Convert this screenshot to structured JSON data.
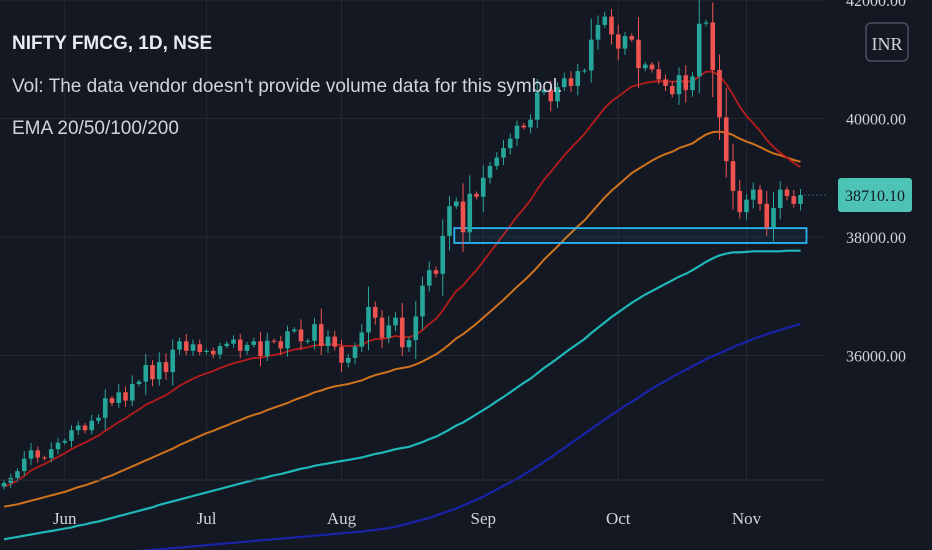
{
  "header": {
    "title": "NIFTY FMCG, 1D, NSE",
    "volume_note": "Vol: The data vendor doesn't provide volume data for this symbol.",
    "indicator": "EMA 20/50/100/200"
  },
  "currency_button": "INR",
  "colors": {
    "background": "#141823",
    "up": "#26a69a",
    "down": "#ef5350",
    "ema20": "#b71c1c",
    "ema50": "#d1731d",
    "ema100": "#1fb7b7",
    "ema200": "#1a23a8",
    "zone": "#29b6f6",
    "price_label": "#4cc3b4"
  },
  "chart_data": {
    "type": "line",
    "subtype": "candlestick",
    "y_axis": {
      "side": "right",
      "ticks": [
        "42000.00",
        "40000.00",
        "38000.00",
        "36000.00"
      ],
      "ylim": [
        33900,
        42000
      ]
    },
    "x_axis": {
      "ticks": [
        "Jun",
        "Jul",
        "Aug",
        "Sep",
        "Oct",
        "Nov"
      ],
      "tick_index": [
        9,
        30,
        50,
        71,
        91,
        110
      ]
    },
    "last_price": "38710.10",
    "close": [
      33850,
      33935,
      34050,
      34260,
      34400,
      34280,
      34270,
      34420,
      34530,
      34560,
      34740,
      34820,
      34740,
      34900,
      34950,
      35280,
      35200,
      35380,
      35240,
      35520,
      35560,
      35840,
      35600,
      35890,
      35720,
      36100,
      36240,
      36080,
      36190,
      36060,
      36080,
      36020,
      36160,
      36200,
      36270,
      36080,
      36180,
      36240,
      35990,
      36250,
      36240,
      36120,
      36410,
      36440,
      36240,
      36250,
      36530,
      36160,
      36320,
      36150,
      35880,
      35960,
      36150,
      36390,
      36820,
      36640,
      36300,
      36510,
      36640,
      36140,
      36260,
      36660,
      37180,
      37440,
      37380,
      38020,
      38520,
      38600,
      38080,
      38730,
      38680,
      39000,
      39200,
      39340,
      39500,
      39660,
      39880,
      39850,
      39980,
      40440,
      40490,
      40290,
      40530,
      40680,
      40550,
      40800,
      40810,
      41330,
      41580,
      41720,
      41420,
      41180,
      41390,
      41330,
      40850,
      40910,
      40830,
      40660,
      40550,
      40410,
      40730,
      40480,
      40710,
      41600,
      41620,
      40820,
      40020,
      39280,
      38780,
      38420,
      38630,
      38800,
      38560,
      38160,
      38490,
      38800,
      38690,
      38560,
      38710
    ],
    "ema20": [
      33790,
      33830,
      33890,
      33970,
      34060,
      34120,
      34170,
      34230,
      34290,
      34350,
      34420,
      34480,
      34530,
      34590,
      34650,
      34730,
      34800,
      34880,
      34940,
      35020,
      35090,
      35170,
      35220,
      35280,
      35330,
      35410,
      35490,
      35550,
      35610,
      35660,
      35700,
      35740,
      35790,
      35830,
      35870,
      35900,
      35930,
      35960,
      35960,
      35990,
      36010,
      36030,
      36070,
      36100,
      36120,
      36140,
      36170,
      36180,
      36190,
      36190,
      36170,
      36160,
      36160,
      36180,
      36240,
      36280,
      36280,
      36300,
      36330,
      36310,
      36310,
      36350,
      36430,
      36530,
      36620,
      36760,
      36930,
      37090,
      37180,
      37320,
      37440,
      37590,
      37740,
      37890,
      38040,
      38190,
      38350,
      38480,
      38620,
      38800,
      38970,
      39100,
      39240,
      39380,
      39500,
      39620,
      39740,
      39890,
      40030,
      40180,
      40290,
      40370,
      40460,
      40540,
      40570,
      40600,
      40620,
      40630,
      40630,
      40620,
      40630,
      40620,
      40630,
      40710,
      40790,
      40790,
      40720,
      40580,
      40400,
      40200,
      40040,
      39920,
      39790,
      39640,
      39520,
      39420,
      39340,
      39250,
      39180
    ],
    "ema50": [
      33450,
      33470,
      33490,
      33520,
      33550,
      33580,
      33610,
      33640,
      33670,
      33700,
      33740,
      33780,
      33810,
      33850,
      33890,
      33940,
      33980,
      34030,
      34080,
      34130,
      34180,
      34230,
      34280,
      34330,
      34380,
      34430,
      34490,
      34540,
      34590,
      34640,
      34690,
      34730,
      34780,
      34820,
      34870,
      34910,
      34960,
      35000,
      35030,
      35080,
      35120,
      35160,
      35200,
      35250,
      35290,
      35330,
      35380,
      35410,
      35450,
      35480,
      35500,
      35520,
      35550,
      35580,
      35630,
      35670,
      35700,
      35730,
      35770,
      35790,
      35810,
      35850,
      35900,
      35960,
      36020,
      36100,
      36190,
      36290,
      36360,
      36450,
      36540,
      36640,
      36740,
      36840,
      36940,
      37050,
      37160,
      37260,
      37370,
      37490,
      37620,
      37730,
      37840,
      37960,
      38070,
      38180,
      38280,
      38410,
      38540,
      38670,
      38780,
      38880,
      38980,
      39080,
      39150,
      39220,
      39290,
      39350,
      39400,
      39440,
      39500,
      39540,
      39580,
      39660,
      39730,
      39770,
      39780,
      39760,
      39720,
      39660,
      39610,
      39570,
      39520,
      39460,
      39410,
      39380,
      39340,
      39300,
      39270
    ],
    "ema100": [
      32900,
      32920,
      32940,
      32960,
      32980,
      33000,
      33020,
      33040,
      33060,
      33080,
      33100,
      33130,
      33150,
      33180,
      33200,
      33230,
      33260,
      33290,
      33320,
      33350,
      33380,
      33410,
      33440,
      33480,
      33510,
      33540,
      33570,
      33600,
      33630,
      33660,
      33690,
      33720,
      33750,
      33780,
      33810,
      33840,
      33870,
      33900,
      33920,
      33950,
      33980,
      34000,
      34030,
      34060,
      34090,
      34110,
      34140,
      34160,
      34180,
      34200,
      34220,
      34240,
      34260,
      34280,
      34310,
      34340,
      34360,
      34390,
      34420,
      34440,
      34460,
      34500,
      34540,
      34590,
      34630,
      34690,
      34750,
      34820,
      34870,
      34940,
      35010,
      35080,
      35150,
      35230,
      35300,
      35380,
      35460,
      35540,
      35610,
      35700,
      35790,
      35870,
      35950,
      36040,
      36120,
      36200,
      36280,
      36380,
      36470,
      36560,
      36650,
      36730,
      36810,
      36890,
      36960,
      37030,
      37090,
      37150,
      37210,
      37270,
      37330,
      37380,
      37440,
      37510,
      37580,
      37640,
      37690,
      37720,
      37740,
      37740,
      37750,
      37760,
      37760,
      37760,
      37760,
      37760,
      37770,
      37770,
      37770
    ],
    "ema200": [
      32500,
      32510,
      32520,
      32530,
      32540,
      32550,
      32560,
      32570,
      32580,
      32590,
      32600,
      32610,
      32620,
      32630,
      32640,
      32650,
      32660,
      32670,
      32680,
      32690,
      32700,
      32710,
      32720,
      32730,
      32740,
      32750,
      32760,
      32770,
      32780,
      32790,
      32800,
      32810,
      32820,
      32830,
      32840,
      32850,
      32860,
      32870,
      32880,
      32890,
      32900,
      32910,
      32920,
      32930,
      32940,
      32950,
      32960,
      32970,
      32980,
      32990,
      33000,
      33010,
      33020,
      33030,
      33045,
      33060,
      33075,
      33090,
      33110,
      33140,
      33170,
      33200,
      33230,
      33260,
      33300,
      33340,
      33380,
      33420,
      33470,
      33520,
      33570,
      33620,
      33680,
      33740,
      33800,
      33860,
      33920,
      33990,
      34060,
      34130,
      34210,
      34280,
      34360,
      34440,
      34520,
      34600,
      34680,
      34760,
      34840,
      34920,
      35000,
      35070,
      35150,
      35220,
      35290,
      35370,
      35440,
      35510,
      35570,
      35640,
      35700,
      35760,
      35820,
      35880,
      35940,
      35990,
      36040,
      36090,
      36140,
      36190,
      36230,
      36280,
      36320,
      36360,
      36400,
      36430,
      36470,
      36500,
      36530
    ],
    "zone": {
      "start_index": 67,
      "end_index": 118,
      "top": 38150,
      "bottom": 37900
    }
  }
}
